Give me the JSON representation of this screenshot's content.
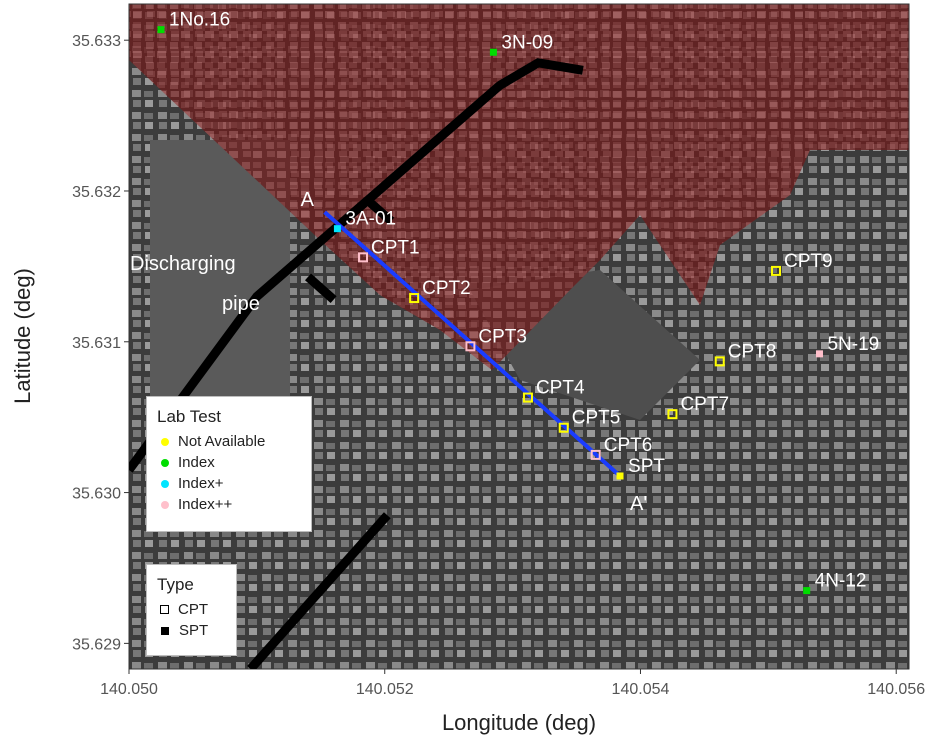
{
  "chart_data": {
    "type": "scatter",
    "xlabel": "Longitude (deg)",
    "ylabel": "Latitude (deg)",
    "xlim": [
      140.05,
      140.0561
    ],
    "ylim": [
      35.62883,
      35.63324
    ],
    "x_ticks": [
      "140.050",
      "140.052",
      "140.054",
      "140.056"
    ],
    "y_ticks": [
      "35.629",
      "35.630",
      "35.631",
      "35.632",
      "35.633"
    ],
    "x_tick_values": [
      140.05,
      140.052,
      140.054,
      140.056
    ],
    "y_tick_values": [
      35.629,
      35.63,
      35.631,
      35.632,
      35.633
    ],
    "grid": false,
    "colors": {
      "Not Available": "#ffff00",
      "Index": "#00dd00",
      "Index+": "#00e5ff",
      "Index++": "#ffc0cb",
      "section_line": "#1a3cff",
      "pipe": "#000000",
      "zone": "#8b1a1a"
    },
    "points": [
      {
        "name": "1No.16",
        "x": 140.05025,
        "y": 35.63307,
        "lab": "Index",
        "type": "SPT"
      },
      {
        "name": "3N-09",
        "x": 140.05285,
        "y": 35.63292,
        "lab": "Index",
        "type": "SPT"
      },
      {
        "name": "3A-01",
        "x": 140.05163,
        "y": 35.63175,
        "lab": "Index+",
        "type": "SPT"
      },
      {
        "name": "CPT1",
        "x": 140.05183,
        "y": 35.63156,
        "lab": "Index++",
        "type": "CPT"
      },
      {
        "name": "CPT2",
        "x": 140.05223,
        "y": 35.63129,
        "lab": "Not Available",
        "type": "CPT"
      },
      {
        "name": "CPT3",
        "x": 140.05267,
        "y": 35.63097,
        "lab": "Index++",
        "type": "CPT"
      },
      {
        "name": "CPT4",
        "x": 140.05312,
        "y": 35.63063,
        "lab": "Not Available",
        "type": "CPT"
      },
      {
        "name": "CPT5",
        "x": 140.0534,
        "y": 35.63043,
        "lab": "Not Available",
        "type": "CPT"
      },
      {
        "name": "CPT6",
        "x": 140.05365,
        "y": 35.63025,
        "lab": "Index++",
        "type": "CPT"
      },
      {
        "name": "SPT",
        "x": 140.05384,
        "y": 35.63011,
        "lab": "Not Available",
        "type": "SPT"
      },
      {
        "name": "CPT7",
        "x": 140.05425,
        "y": 35.63052,
        "lab": "Not Available",
        "type": "CPT"
      },
      {
        "name": "CPT8",
        "x": 140.05462,
        "y": 35.63087,
        "lab": "Not Available",
        "type": "CPT"
      },
      {
        "name": "CPT9",
        "x": 140.05506,
        "y": 35.63147,
        "lab": "Not Available",
        "type": "CPT"
      },
      {
        "name": "5N-19",
        "x": 140.0554,
        "y": 35.63092,
        "lab": "Index++",
        "type": "SPT"
      },
      {
        "name": "4N-12",
        "x": 140.0553,
        "y": 35.62935,
        "lab": "Index",
        "type": "SPT"
      }
    ],
    "section_line": {
      "start": {
        "label": "A",
        "x": 140.05153,
        "y": 35.63186
      },
      "end": {
        "label": "A'",
        "x": 140.05384,
        "y": 35.63011
      }
    },
    "pipe_lines": [
      [
        [
          140.05,
          35.63015
        ],
        [
          140.051,
          35.6313
        ],
        [
          140.0529,
          35.6327
        ],
        [
          140.0532,
          35.63285
        ],
        [
          140.05355,
          35.6328
        ]
      ],
      [
        [
          140.05185,
          35.63195
        ],
        [
          140.05205,
          35.6318
        ]
      ],
      [
        [
          140.0514,
          35.63143
        ],
        [
          140.0516,
          35.63128
        ]
      ],
      [
        [
          140.05095,
          35.62883
        ],
        [
          140.05202,
          35.62985
        ]
      ]
    ],
    "pipe_label": [
      "Discharging",
      "pipe"
    ],
    "legends": [
      {
        "title": "Lab Test",
        "entries": [
          {
            "label": "Not Available",
            "color": "#ffff00"
          },
          {
            "label": "Index",
            "color": "#00dd00"
          },
          {
            "label": "Index+",
            "color": "#00e5ff"
          },
          {
            "label": "Index++",
            "color": "#ffc0cb"
          }
        ]
      },
      {
        "title": "Type",
        "entries": [
          {
            "label": "CPT",
            "shape": "open-square"
          },
          {
            "label": "SPT",
            "shape": "filled-square"
          }
        ]
      }
    ]
  }
}
